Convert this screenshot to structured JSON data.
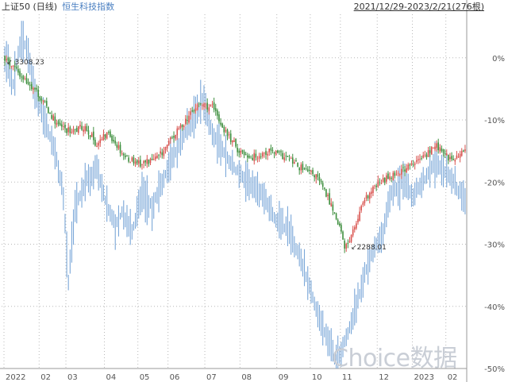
{
  "header": {
    "series1_name": "上证50 (日线)",
    "series2_name": "恒生科技指数",
    "date_range": "2021/12/29-2023/2/21(276根)"
  },
  "watermark": "Choice数据",
  "colors": {
    "up": "#d9534f",
    "down": "#3e8f3e",
    "series2": "#7aa7d8",
    "grid": "#b8b8b8",
    "axis_text": "#555555",
    "label_text": "#333333"
  },
  "chart_data": {
    "type": "line",
    "title": "",
    "xlabel": "",
    "ylabel": "",
    "ylim": [
      -50,
      7
    ],
    "y_ticks": [
      "0%",
      "-10%",
      "-20%",
      "-30%",
      "-40%",
      "-50%"
    ],
    "y_tick_values": [
      0,
      -10,
      -20,
      -30,
      -40,
      -50
    ],
    "x_ticks": [
      "2022",
      "02",
      "03",
      "04",
      "05",
      "06",
      "07",
      "08",
      "09",
      "10",
      "11",
      "12",
      "2023",
      "02"
    ],
    "x_tick_positions": [
      0,
      21,
      37,
      60,
      80,
      98,
      120,
      141,
      163,
      183,
      201,
      223,
      244,
      264
    ],
    "x_count": 276,
    "grid": true,
    "annotations": [
      {
        "text": "3308.23",
        "x": 1,
        "y": 0
      },
      {
        "text": "2288.01",
        "x": 203,
        "y": -30.8
      }
    ],
    "series": [
      {
        "name": "上证50 (日线)",
        "style": "candlestick",
        "keypoints": [
          [
            0,
            0
          ],
          [
            5,
            -1.5
          ],
          [
            10,
            -3
          ],
          [
            18,
            -5
          ],
          [
            25,
            -8
          ],
          [
            32,
            -11
          ],
          [
            40,
            -12
          ],
          [
            48,
            -11
          ],
          [
            55,
            -14
          ],
          [
            62,
            -12
          ],
          [
            72,
            -16
          ],
          [
            82,
            -17
          ],
          [
            92,
            -16
          ],
          [
            100,
            -13
          ],
          [
            108,
            -10
          ],
          [
            116,
            -7.5
          ],
          [
            124,
            -8
          ],
          [
            132,
            -12
          ],
          [
            140,
            -15
          ],
          [
            148,
            -16
          ],
          [
            158,
            -15
          ],
          [
            168,
            -16
          ],
          [
            178,
            -18
          ],
          [
            186,
            -19
          ],
          [
            194,
            -23
          ],
          [
            200,
            -27
          ],
          [
            203,
            -30.8
          ],
          [
            208,
            -28
          ],
          [
            215,
            -23
          ],
          [
            222,
            -20.5
          ],
          [
            230,
            -19
          ],
          [
            238,
            -18
          ],
          [
            245,
            -17
          ],
          [
            252,
            -15.5
          ],
          [
            258,
            -14
          ],
          [
            262,
            -15.5
          ],
          [
            268,
            -16.5
          ],
          [
            275,
            -15
          ]
        ]
      },
      {
        "name": "恒生科技指数",
        "style": "bars",
        "keypoints": [
          [
            0,
            0
          ],
          [
            5,
            -4
          ],
          [
            10,
            3
          ],
          [
            14,
            1
          ],
          [
            18,
            -6
          ],
          [
            24,
            -10
          ],
          [
            30,
            -15
          ],
          [
            35,
            -22
          ],
          [
            38,
            -36
          ],
          [
            42,
            -24
          ],
          [
            48,
            -20
          ],
          [
            55,
            -18
          ],
          [
            60,
            -23
          ],
          [
            66,
            -27
          ],
          [
            70,
            -25
          ],
          [
            76,
            -28
          ],
          [
            82,
            -22
          ],
          [
            88,
            -24
          ],
          [
            94,
            -20
          ],
          [
            100,
            -16
          ],
          [
            106,
            -13
          ],
          [
            112,
            -10
          ],
          [
            118,
            -7
          ],
          [
            124,
            -12
          ],
          [
            130,
            -15
          ],
          [
            138,
            -18
          ],
          [
            146,
            -20
          ],
          [
            154,
            -22
          ],
          [
            162,
            -26
          ],
          [
            170,
            -28
          ],
          [
            176,
            -32
          ],
          [
            182,
            -37
          ],
          [
            188,
            -42
          ],
          [
            194,
            -46
          ],
          [
            198,
            -49
          ],
          [
            204,
            -45
          ],
          [
            210,
            -40
          ],
          [
            216,
            -34
          ],
          [
            222,
            -30
          ],
          [
            226,
            -28
          ],
          [
            230,
            -22
          ],
          [
            238,
            -20
          ],
          [
            244,
            -22
          ],
          [
            250,
            -20
          ],
          [
            256,
            -17
          ],
          [
            262,
            -18
          ],
          [
            268,
            -20
          ],
          [
            275,
            -23
          ]
        ]
      }
    ]
  }
}
